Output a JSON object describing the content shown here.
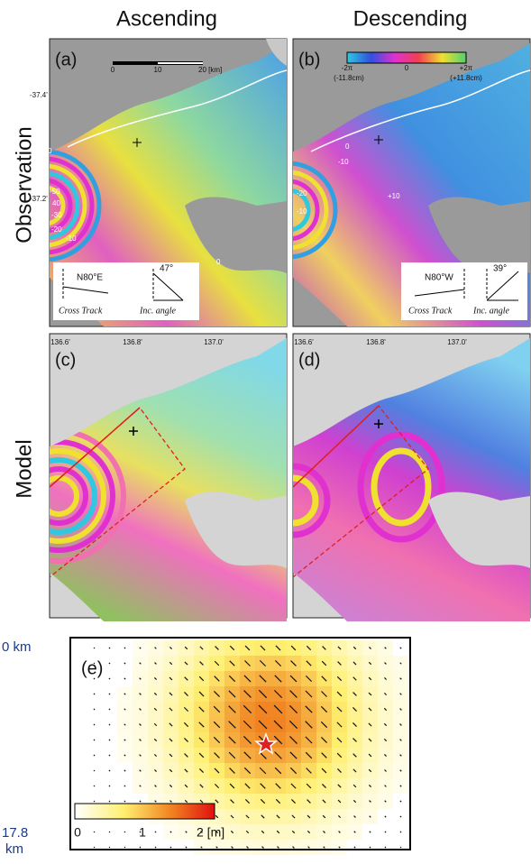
{
  "column_titles": [
    "Ascending",
    "Descending"
  ],
  "row_titles": [
    "Observation",
    "Model"
  ],
  "panels": [
    {
      "label": "(a)",
      "scale_bar": [
        "0",
        "10",
        "20 [km]"
      ],
      "lat_labels": [
        "-37.4'",
        "-37.2'"
      ],
      "contour_labels": [
        "0",
        "-50",
        "40",
        "-30",
        "-20",
        "-10",
        "0"
      ],
      "inset": {
        "heading": "N80°E",
        "angle": "47°",
        "cross_track": "Cross Track",
        "inc_angle": "Inc. angle"
      }
    },
    {
      "label": "(b)",
      "colorbar": [
        "-2π",
        "0",
        "+2π",
        "(-11.8cm)",
        "(+11.8cm)"
      ],
      "contour_labels": [
        "0",
        "-10",
        "-20",
        "-10",
        "+10"
      ],
      "inset": {
        "heading": "N80°W",
        "angle": "39°",
        "cross_track": "Cross Track",
        "inc_angle": "Inc. angle"
      }
    },
    {
      "label": "(c)",
      "lon_labels": [
        "136.6'",
        "136.8'",
        "137.0'"
      ]
    },
    {
      "label": "(d)",
      "lon_labels": [
        "136.6'",
        "136.8'",
        "137.0'"
      ]
    }
  ],
  "slip_panel": {
    "label": "(e)",
    "depth_top": "0 km",
    "depth_bottom": [
      "17.8",
      "km"
    ],
    "colorbar": [
      "0",
      "1",
      "2 [m]"
    ]
  }
}
